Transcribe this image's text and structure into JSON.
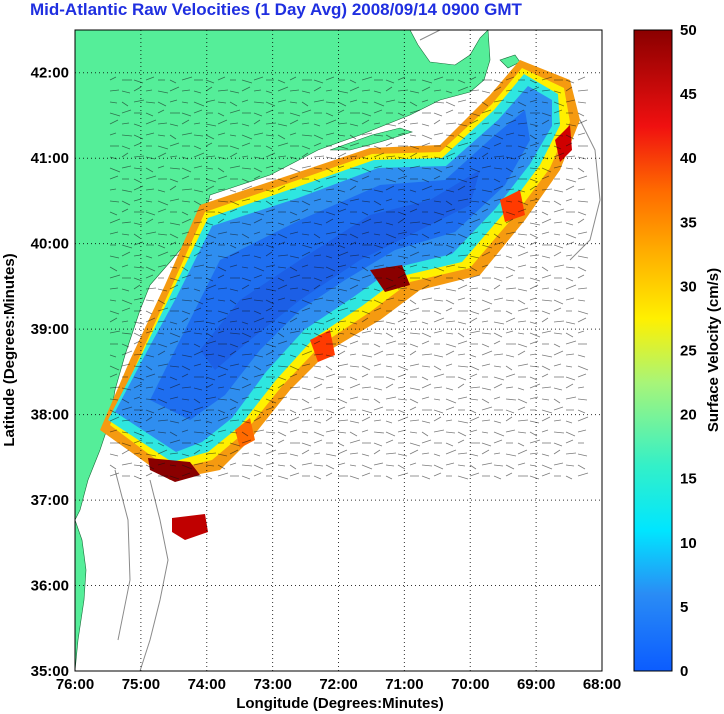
{
  "title": "Mid-Atlantic Raw Velocities (1 Day Avg) 2008/09/14 0900 GMT",
  "axes": {
    "xlabel": "Longitude (Degrees:Minutes)",
    "ylabel": "Latitude (Degrees:Minutes)",
    "x_ticks": [
      "76:00",
      "75:00",
      "74:00",
      "73:00",
      "72:00",
      "71:00",
      "70:00",
      "69:00",
      "68:00"
    ],
    "y_ticks": [
      "42:00",
      "41:00",
      "40:00",
      "39:00",
      "38:00",
      "37:00",
      "36:00",
      "35:00"
    ]
  },
  "colorbar": {
    "label": "Surface Velocity (cm/s)",
    "ticks": [
      "50",
      "45",
      "40",
      "35",
      "30",
      "25",
      "20",
      "15",
      "10",
      "5",
      "0"
    ]
  },
  "colors": {
    "title": "#1f2fe0",
    "land": "#55ee99",
    "low": "#1e6ef0",
    "mid": "#18e6e6",
    "high": "#9b0000"
  },
  "chart_data": {
    "type": "heatmap",
    "title": "Mid-Atlantic Raw Velocities (1 Day Avg) 2008/09/14 0900 GMT",
    "xlabel": "Longitude (Degrees:Minutes)",
    "ylabel": "Latitude (Degrees:Minutes)",
    "xlim": [
      "76:00",
      "68:00"
    ],
    "ylim": [
      "35:00",
      "42:30"
    ],
    "value_range": [
      0,
      50
    ],
    "colorbar_label": "Surface Velocity (cm/s)",
    "grid": true
  }
}
